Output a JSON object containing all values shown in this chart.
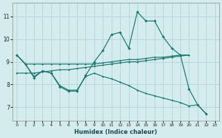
{
  "xlabel": "Humidex (Indice chaleur)",
  "bg_color": "#d4ecee",
  "grid_color": "#aacdd4",
  "line_color": "#1a7870",
  "xlim": [
    -0.5,
    23.5
  ],
  "ylim": [
    6.4,
    11.6
  ],
  "xticks": [
    0,
    1,
    2,
    3,
    4,
    5,
    6,
    7,
    8,
    9,
    10,
    11,
    12,
    13,
    14,
    15,
    16,
    17,
    18,
    19,
    20,
    21,
    22,
    23
  ],
  "yticks": [
    7,
    8,
    9,
    10,
    11
  ],
  "curve_main": [
    9.3,
    8.9,
    8.3,
    8.6,
    8.5,
    7.9,
    7.7,
    7.7,
    8.4,
    9.0,
    9.5,
    10.2,
    10.3,
    9.6,
    11.2,
    10.8,
    10.8,
    10.1,
    9.6,
    9.3,
    7.8,
    7.1,
    6.7
  ],
  "curve_flat": [
    [
      0,
      9.3
    ],
    [
      1,
      8.9
    ],
    [
      2,
      8.9
    ],
    [
      3,
      8.9
    ],
    [
      4,
      8.9
    ],
    [
      5,
      8.9
    ],
    [
      6,
      8.9
    ],
    [
      7,
      8.9
    ],
    [
      8,
      8.9
    ],
    [
      9,
      8.9
    ],
    [
      10,
      8.95
    ],
    [
      11,
      9.0
    ],
    [
      12,
      9.05
    ],
    [
      13,
      9.1
    ],
    [
      14,
      9.1
    ],
    [
      15,
      9.15
    ],
    [
      16,
      9.2
    ],
    [
      17,
      9.2
    ],
    [
      18,
      9.25
    ],
    [
      19,
      9.3
    ],
    [
      20,
      9.3
    ]
  ],
  "curve_mid": [
    [
      0,
      8.5
    ],
    [
      1,
      8.5
    ],
    [
      2,
      8.5
    ],
    [
      3,
      8.55
    ],
    [
      4,
      8.6
    ],
    [
      5,
      8.65
    ],
    [
      6,
      8.65
    ],
    [
      7,
      8.7
    ],
    [
      8,
      8.75
    ],
    [
      9,
      8.8
    ],
    [
      10,
      8.85
    ],
    [
      11,
      8.9
    ],
    [
      12,
      8.95
    ],
    [
      13,
      9.0
    ],
    [
      14,
      9.0
    ],
    [
      15,
      9.05
    ],
    [
      16,
      9.1
    ],
    [
      17,
      9.15
    ],
    [
      18,
      9.2
    ],
    [
      19,
      9.25
    ],
    [
      20,
      9.3
    ]
  ],
  "curve_low": [
    [
      0,
      9.3
    ],
    [
      1,
      8.9
    ],
    [
      2,
      8.35
    ],
    [
      3,
      8.6
    ],
    [
      4,
      8.5
    ],
    [
      5,
      7.95
    ],
    [
      6,
      7.75
    ],
    [
      7,
      7.75
    ],
    [
      8,
      8.35
    ],
    [
      9,
      8.5
    ],
    [
      10,
      8.35
    ],
    [
      11,
      8.25
    ],
    [
      12,
      8.1
    ],
    [
      13,
      7.95
    ],
    [
      14,
      7.75
    ],
    [
      15,
      7.6
    ],
    [
      16,
      7.5
    ],
    [
      17,
      7.4
    ],
    [
      18,
      7.3
    ],
    [
      19,
      7.2
    ],
    [
      20,
      7.05
    ],
    [
      21,
      7.1
    ],
    [
      22,
      6.7
    ]
  ]
}
